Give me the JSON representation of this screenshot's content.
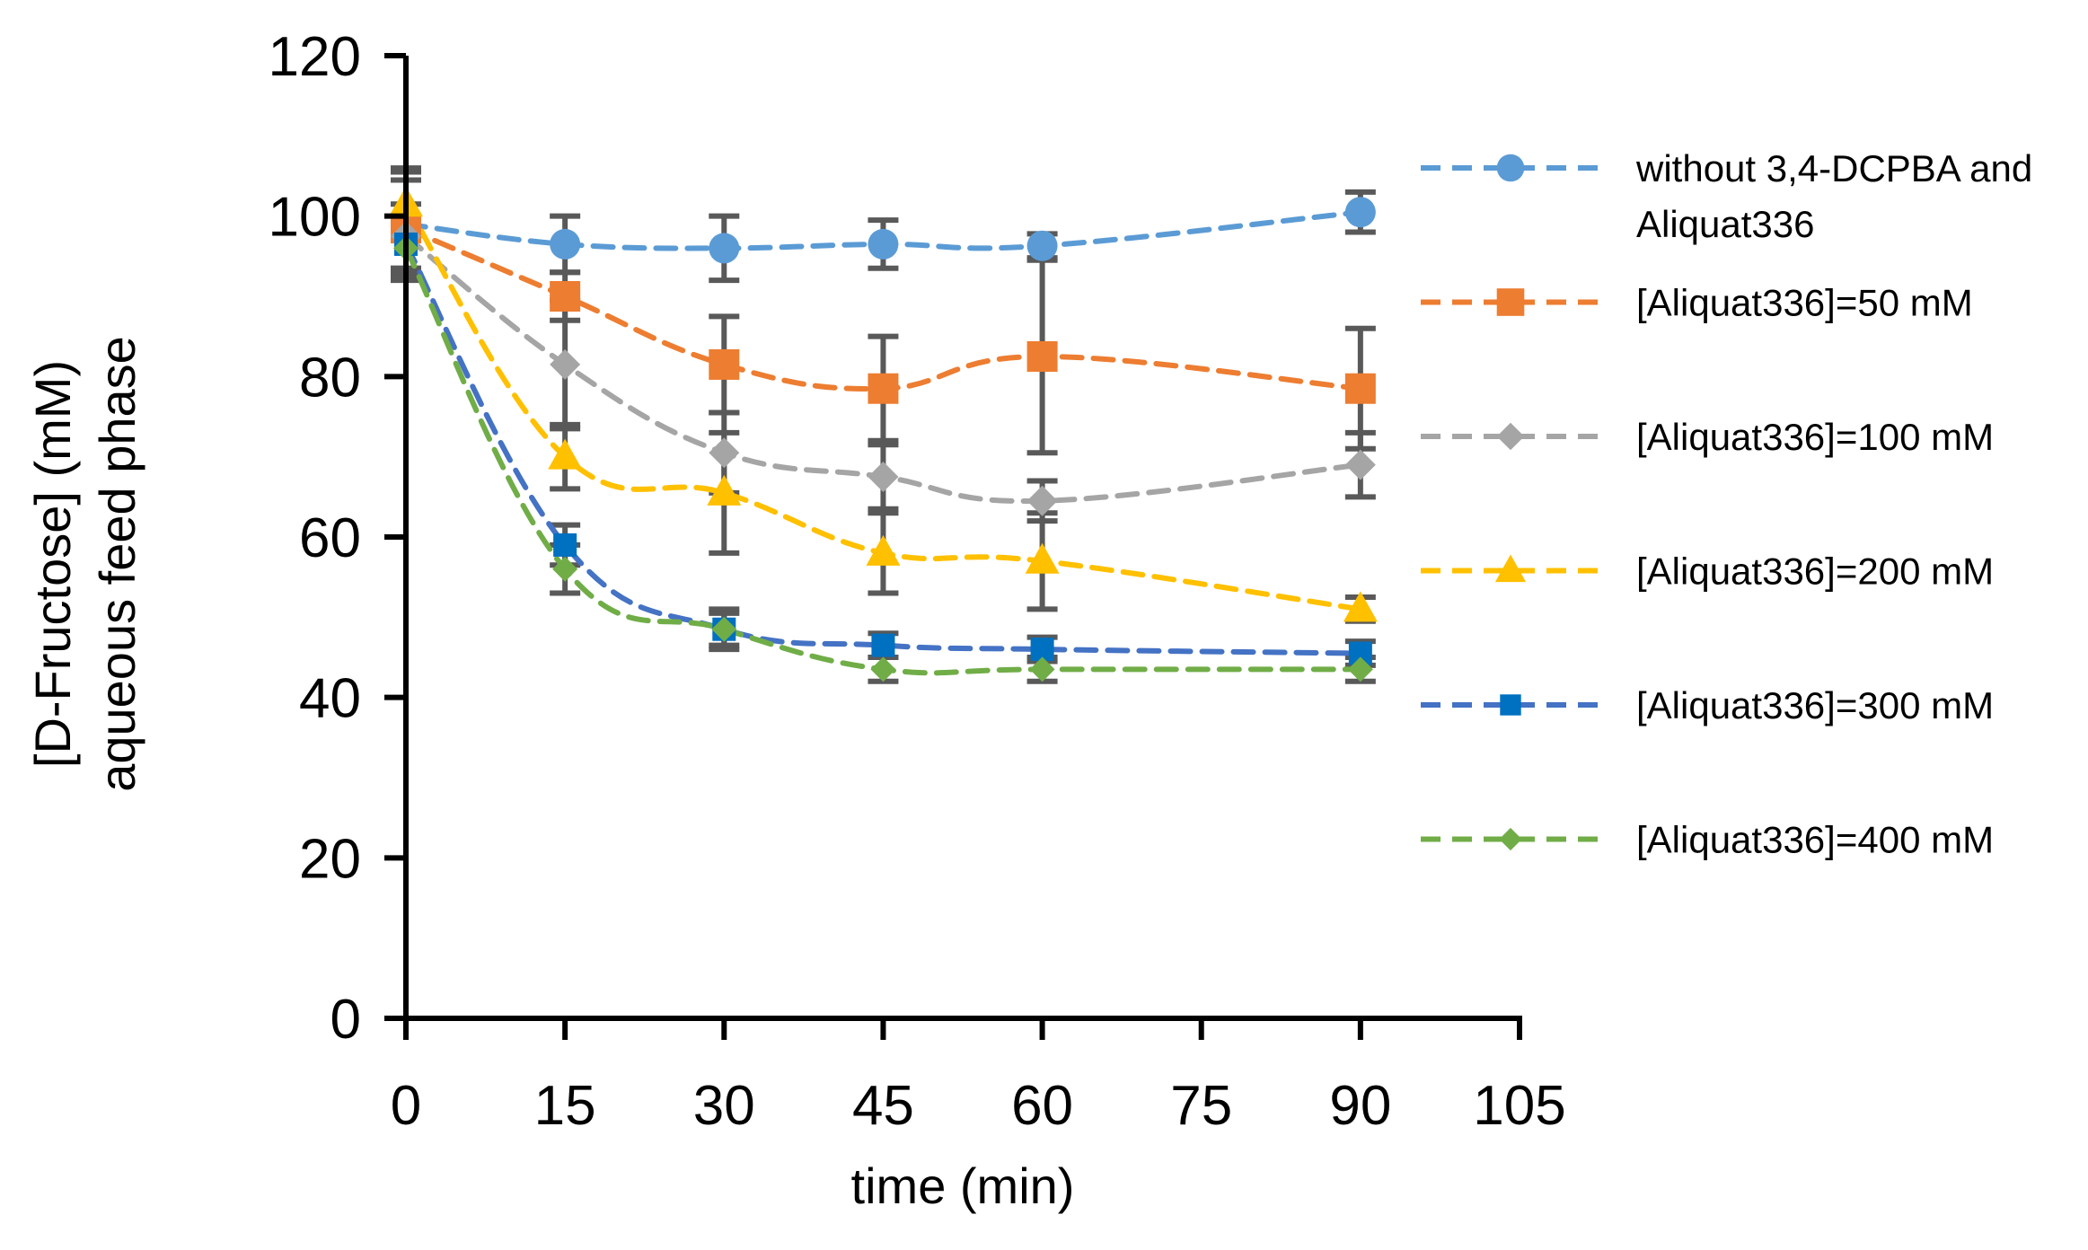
{
  "chart_data": {
    "type": "line",
    "title": "",
    "xlabel": "time (min)",
    "ylabel": [
      "[D-Fructose] (mM)",
      "aqueous feed phase"
    ],
    "xlim": [
      0,
      105
    ],
    "ylim": [
      0,
      120
    ],
    "xticks": [
      0,
      15,
      30,
      45,
      60,
      75,
      90,
      105
    ],
    "yticks": [
      0,
      20,
      40,
      60,
      80,
      100,
      120
    ],
    "x": [
      0,
      15,
      30,
      45,
      60,
      90
    ],
    "legend_position": "right",
    "series": [
      {
        "name": "without 3,4-DCPBA and Aliquat336",
        "legend_lines": [
          "without 3,4-DCPBA and",
          "Aliquat336"
        ],
        "marker": "circle",
        "color": "#5B9BD5",
        "values": [
          99,
          96.5,
          96,
          96.5,
          96.3,
          100.5
        ],
        "errors": [
          7,
          3.5,
          4,
          3,
          1.5,
          2.5
        ]
      },
      {
        "name": "[Aliquat336]=50 mM",
        "legend_lines": [
          "[Aliquat336]=50 mM"
        ],
        "marker": "square",
        "color": "#ED7D31",
        "values": [
          98.5,
          90,
          81.5,
          78.5,
          82.5,
          78.5
        ],
        "errors": [
          6,
          3,
          6,
          6.5,
          12,
          7.5
        ]
      },
      {
        "name": "[Aliquat336]=100 mM",
        "legend_lines": [
          "[Aliquat336]=100 mM"
        ],
        "marker": "diamond",
        "color": "#A5A5A5",
        "values": [
          97.5,
          81.5,
          70.5,
          67.5,
          64.5,
          69
        ],
        "errors": [
          4,
          8,
          5,
          4,
          2.5,
          4
        ]
      },
      {
        "name": "[Aliquat336]=200 mM",
        "legend_lines": [
          "[Aliquat336]=200 mM"
        ],
        "marker": "triangle",
        "color": "#FFC000",
        "values": [
          101.5,
          70,
          65.5,
          58,
          57,
          51
        ],
        "errors": [
          4,
          4,
          7.5,
          5,
          6,
          1.5
        ]
      },
      {
        "name": "[Aliquat336]=300 mM",
        "legend_lines": [
          "[Aliquat336]=300 mM"
        ],
        "marker": "square-small",
        "color": "#4472C4",
        "markerColor": "#0070C0",
        "values": [
          96.5,
          59,
          48.5,
          46.5,
          46,
          45.5
        ],
        "errors": [
          3,
          2.5,
          2,
          1.5,
          1.5,
          1.5
        ]
      },
      {
        "name": "[Aliquat336]=400 mM",
        "legend_lines": [
          "[Aliquat336]=400 mM"
        ],
        "marker": "diamond-small",
        "color": "#70AD47",
        "values": [
          96,
          56,
          48.5,
          43.5,
          43.5,
          43.5
        ],
        "errors": [
          3,
          3,
          2.5,
          1.5,
          1.5,
          1.5
        ]
      }
    ]
  }
}
